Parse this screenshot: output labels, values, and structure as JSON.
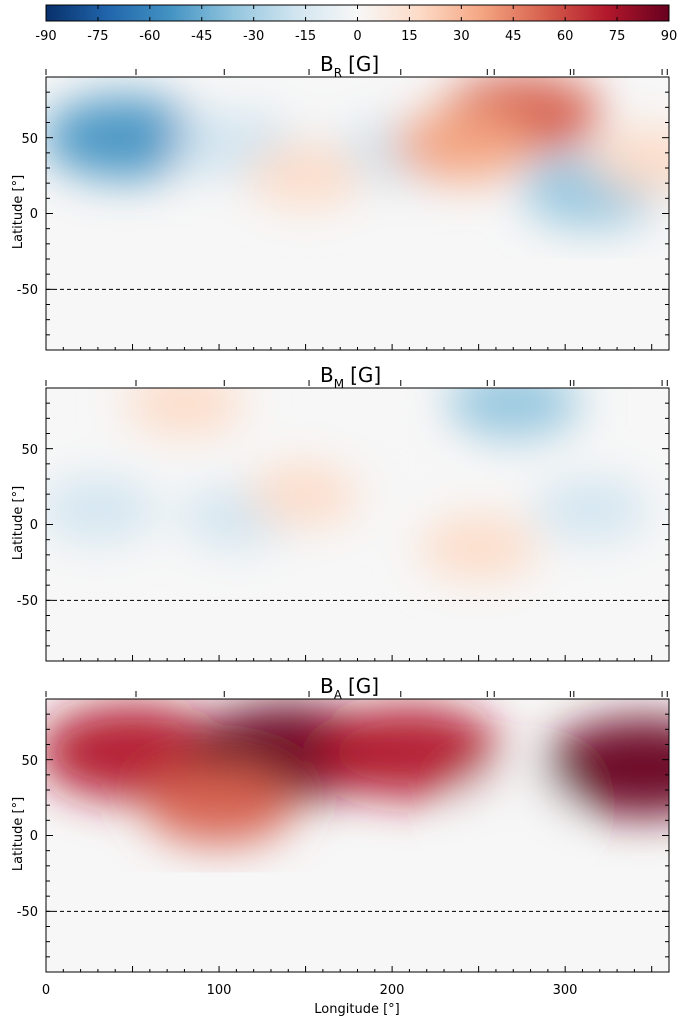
{
  "colorbar": {
    "tick_labels": [
      "-90",
      "-75",
      "-60",
      "-45",
      "-30",
      "-15",
      "0",
      "15",
      "30",
      "45",
      "60",
      "75",
      "90"
    ],
    "range": [
      -90,
      90
    ],
    "colormap": "RdBu_r",
    "colors": [
      "#08306b",
      "#2166ac",
      "#4393c3",
      "#92c5de",
      "#d1e5f0",
      "#f7f7f7",
      "#fddbc7",
      "#f4a582",
      "#d6604d",
      "#b2182b",
      "#67001f"
    ]
  },
  "chart_data": [
    {
      "type": "heatmap",
      "title_main": "B",
      "title_sub": "R",
      "title_unit": "[G]",
      "xlim": [
        0,
        360
      ],
      "ylim": [
        -90,
        90
      ],
      "ylabel": "Latitude [°]",
      "y_ticks": [
        "50",
        "0",
        "-50"
      ],
      "reference_line_latitude": -50,
      "top_markers_longitude": [
        52,
        103,
        152,
        205,
        255,
        259,
        303,
        305,
        356,
        359
      ],
      "features": [
        {
          "lon": 45,
          "lat": 50,
          "value": -55
        },
        {
          "lon": 110,
          "lat": 45,
          "value": -25
        },
        {
          "lon": 200,
          "lat": 40,
          "value": -20
        },
        {
          "lon": 150,
          "lat": 25,
          "value": 15
        },
        {
          "lon": 275,
          "lat": 65,
          "value": 55
        },
        {
          "lon": 240,
          "lat": 45,
          "value": 35
        },
        {
          "lon": 315,
          "lat": 15,
          "value": -35
        },
        {
          "lon": 350,
          "lat": 35,
          "value": 20
        }
      ]
    },
    {
      "type": "heatmap",
      "title_main": "B",
      "title_sub": "M",
      "title_unit": "[G]",
      "xlim": [
        0,
        360
      ],
      "ylim": [
        -90,
        90
      ],
      "ylabel": "Latitude [°]",
      "y_ticks": [
        "50",
        "0",
        "-50"
      ],
      "reference_line_latitude": -50,
      "top_markers_longitude": [
        52,
        103,
        152,
        205,
        255,
        259,
        303,
        305,
        356,
        359
      ],
      "features": [
        {
          "lon": 80,
          "lat": 80,
          "value": 18
        },
        {
          "lon": 30,
          "lat": 10,
          "value": -18
        },
        {
          "lon": 110,
          "lat": 5,
          "value": -12
        },
        {
          "lon": 150,
          "lat": 20,
          "value": 12
        },
        {
          "lon": 270,
          "lat": 80,
          "value": -30
        },
        {
          "lon": 250,
          "lat": -15,
          "value": 18
        },
        {
          "lon": 315,
          "lat": 10,
          "value": -15
        },
        {
          "lon": 200,
          "lat": 40,
          "value": -8
        }
      ]
    },
    {
      "type": "heatmap",
      "title_main": "B",
      "title_sub": "A",
      "title_unit": "[G]",
      "xlim": [
        0,
        360
      ],
      "ylim": [
        -90,
        90
      ],
      "ylabel": "Latitude [°]",
      "y_ticks": [
        "50",
        "0",
        "-50"
      ],
      "xlabel": "Longitude [°]",
      "x_ticks": [
        "0",
        "100",
        "200",
        "300"
      ],
      "reference_line_latitude": -50,
      "top_markers_longitude": [
        52,
        103,
        152,
        205,
        255,
        259,
        303,
        305,
        356,
        359
      ],
      "features": [
        {
          "lon": 50,
          "lat": 55,
          "value": 80
        },
        {
          "lon": 140,
          "lat": 55,
          "value": 85
        },
        {
          "lon": 210,
          "lat": 55,
          "value": 75
        },
        {
          "lon": 345,
          "lat": 45,
          "value": 88
        },
        {
          "lon": 100,
          "lat": 20,
          "value": 45
        },
        {
          "lon": 270,
          "lat": 20,
          "value": 5
        }
      ]
    }
  ]
}
